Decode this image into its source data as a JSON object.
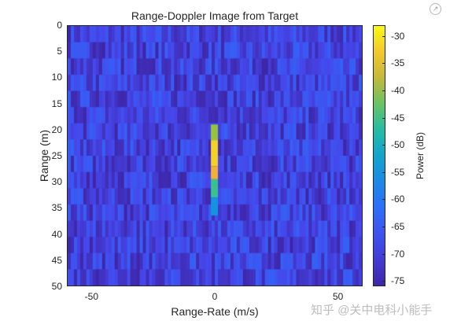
{
  "chart_data": {
    "type": "heatmap",
    "title": "Range-Doppler Image from Target",
    "xlabel": "Range-Rate (m/s)",
    "ylabel": "Range (m)",
    "xlim": [
      -60,
      60
    ],
    "ylim": [
      0,
      50
    ],
    "y_reversed": true,
    "xticks": [
      -50,
      0,
      50
    ],
    "yticks": [
      0,
      5,
      10,
      15,
      20,
      25,
      30,
      35,
      40,
      45,
      50
    ],
    "colorbar": {
      "label": "Power (dB)",
      "ticks": [
        -30,
        -35,
        -40,
        -45,
        -50,
        -55,
        -60,
        -65,
        -70,
        -75
      ],
      "range": [
        -76,
        -28
      ],
      "colormap": "parula"
    },
    "background_power_db": [
      -76,
      -64
    ],
    "target": {
      "range_rate": 0,
      "range_span": [
        19,
        36
      ],
      "segments": [
        {
          "range": [
            19,
            22
          ],
          "power_db": -40
        },
        {
          "range": [
            22,
            27
          ],
          "power_db": -32
        },
        {
          "range": [
            27,
            29.5
          ],
          "power_db": -35
        },
        {
          "range": [
            29.5,
            33
          ],
          "power_db": -45
        },
        {
          "range": [
            33,
            36.5
          ],
          "power_db": -55
        }
      ]
    },
    "grid": false
  },
  "labels": {
    "title": "Range-Doppler Image from Target",
    "xlabel": "Range-Rate (m/s)",
    "ylabel": "Range (m)",
    "cbar_label": "Power (dB)",
    "xticks": [
      "-50",
      "0",
      "50"
    ],
    "yticks": [
      "0",
      "5",
      "10",
      "15",
      "20",
      "25",
      "30",
      "35",
      "40",
      "45",
      "50"
    ],
    "cticks": [
      "-30",
      "-35",
      "-40",
      "-45",
      "-50",
      "-55",
      "-60",
      "-65",
      "-70",
      "-75"
    ]
  },
  "watermark": "知乎 @关中电科小能手",
  "expand_icon": "↗"
}
